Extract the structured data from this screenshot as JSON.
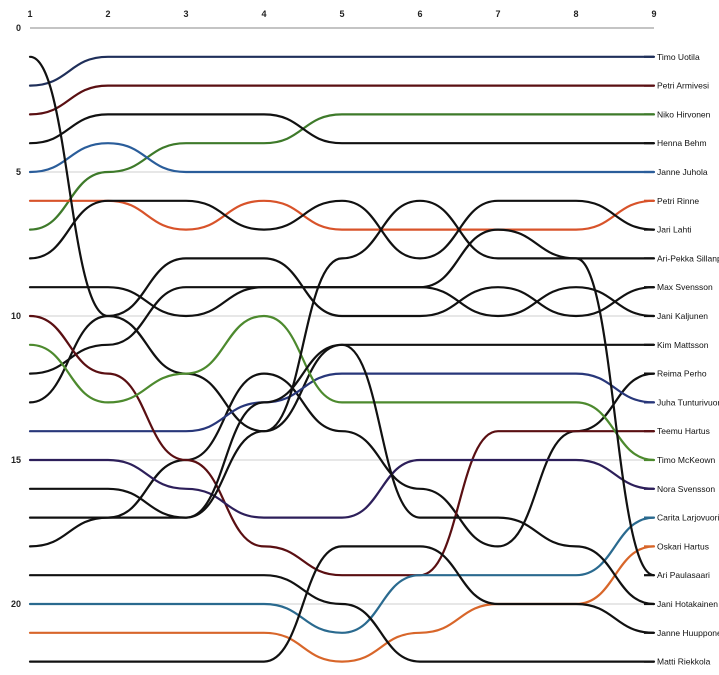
{
  "chart_data": {
    "type": "line",
    "x": [
      1,
      2,
      3,
      4,
      5,
      6,
      7,
      8,
      9
    ],
    "ylim": [
      0,
      22
    ],
    "y_ticks": [
      0,
      5,
      10,
      15,
      20
    ],
    "y_reversed": true,
    "grid": true,
    "series": [
      {
        "name": "Timo Uotila",
        "color": "#1f2f5a",
        "values": [
          2,
          1,
          1,
          1,
          1,
          1,
          1,
          1,
          1
        ]
      },
      {
        "name": "Petri Armivesi",
        "color": "#5a0f12",
        "values": [
          3,
          2,
          2,
          2,
          2,
          2,
          2,
          2,
          2
        ]
      },
      {
        "name": "Niko Hirvonen",
        "color": "#3e7a2a",
        "values": [
          7,
          5,
          4,
          4,
          3,
          3,
          3,
          3,
          3
        ]
      },
      {
        "name": "Henna Behm",
        "color": "#111111",
        "values": [
          4,
          3,
          3,
          3,
          4,
          4,
          4,
          4,
          4
        ]
      },
      {
        "name": "Janne Juhola",
        "color": "#2a5d9a",
        "values": [
          5,
          4,
          5,
          5,
          5,
          5,
          5,
          5,
          5
        ]
      },
      {
        "name": "Petri Rinne",
        "color": "#d8532a",
        "values": [
          6,
          6,
          7,
          6,
          7,
          7,
          7,
          7,
          6
        ]
      },
      {
        "name": "Jari Lahti",
        "color": "#111111",
        "values": [
          8,
          6,
          6,
          7,
          6,
          8,
          6,
          6,
          7
        ]
      },
      {
        "name": "Ari-Pekka Sillanpää",
        "color": "#111111",
        "values": [
          9,
          9,
          10,
          9,
          9,
          9,
          7,
          8,
          8
        ]
      },
      {
        "name": "Max Svensson",
        "color": "#111111",
        "values": [
          13,
          10,
          8,
          8,
          10,
          10,
          9,
          10,
          9
        ]
      },
      {
        "name": "Jani Kaljunen",
        "color": "#111111",
        "values": [
          12,
          11,
          9,
          9,
          9,
          9,
          10,
          9,
          10
        ]
      },
      {
        "name": "Kim Mattsson",
        "color": "#111111",
        "values": [
          1,
          10,
          12,
          14,
          11,
          11,
          11,
          11,
          11
        ]
      },
      {
        "name": "Reima Perho",
        "color": "#111111",
        "values": [
          18,
          17,
          15,
          12,
          14,
          16,
          18,
          14,
          12
        ]
      },
      {
        "name": "Juha Tunturivuori",
        "color": "#28377a",
        "values": [
          14,
          14,
          14,
          13,
          12,
          12,
          12,
          12,
          13
        ]
      },
      {
        "name": "Teemu Hartus",
        "color": "#5a0f12",
        "values": [
          10,
          12,
          15,
          18,
          19,
          19,
          14,
          14,
          14
        ]
      },
      {
        "name": "Timo McKeown",
        "color": "#4d8a2e",
        "values": [
          11,
          13,
          12,
          10,
          13,
          13,
          13,
          13,
          15
        ]
      },
      {
        "name": "Nora Svensson",
        "color": "#2d1f5a",
        "values": [
          15,
          15,
          16,
          17,
          17,
          15,
          15,
          15,
          16
        ]
      },
      {
        "name": "Carita Larjovuori",
        "color": "#2a6a8f",
        "values": [
          20,
          20,
          20,
          20,
          21,
          19,
          19,
          19,
          17
        ]
      },
      {
        "name": "Oskari Hartus",
        "color": "#d8662a",
        "values": [
          21,
          21,
          21,
          21,
          22,
          21,
          20,
          20,
          18
        ]
      },
      {
        "name": "Ari Paulasaari",
        "color": "#111111",
        "values": [
          17,
          17,
          17,
          14,
          8,
          6,
          8,
          8,
          19
        ]
      },
      {
        "name": "Jani Hotakainen",
        "color": "#111111",
        "values": [
          16,
          16,
          17,
          13,
          11,
          17,
          17,
          18,
          20
        ]
      },
      {
        "name": "Janne Huupponen",
        "color": "#111111",
        "values": [
          22,
          22,
          22,
          22,
          18,
          18,
          20,
          20,
          21
        ]
      },
      {
        "name": "Matti Riekkola",
        "color": "#111111",
        "values": [
          19,
          19,
          19,
          19,
          20,
          22,
          22,
          22,
          22
        ]
      }
    ]
  }
}
